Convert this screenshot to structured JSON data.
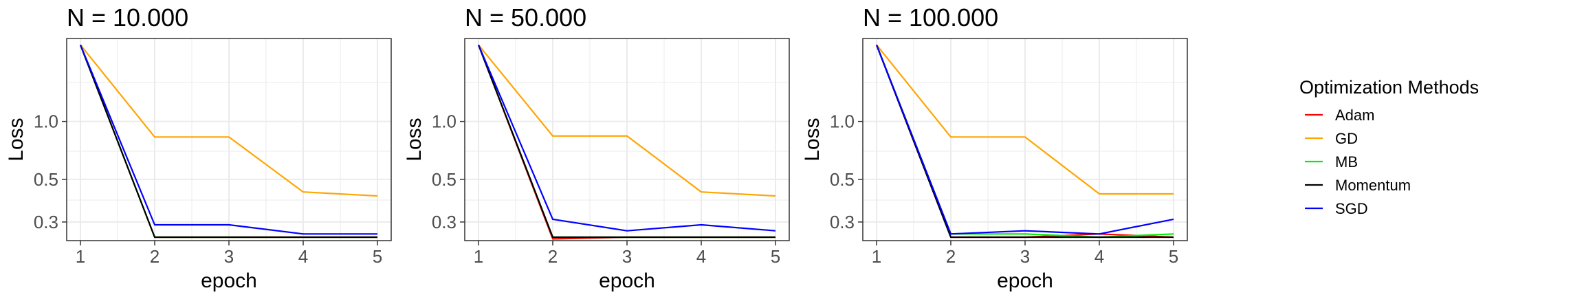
{
  "chart_data": [
    {
      "type": "line",
      "title": "N = 10.000",
      "xlabel": "epoch",
      "ylabel": "Loss",
      "x": [
        1,
        2,
        3,
        4,
        5
      ],
      "y_scale": "log",
      "yticks": [
        "0.3",
        "0.5",
        "1.0"
      ],
      "series": [
        {
          "name": "Adam",
          "values": [
            2.5,
            0.25,
            0.25,
            0.25,
            0.25
          ]
        },
        {
          "name": "GD",
          "values": [
            2.5,
            0.83,
            0.83,
            0.43,
            0.41
          ]
        },
        {
          "name": "MB",
          "values": [
            2.5,
            0.25,
            0.25,
            0.25,
            0.25
          ]
        },
        {
          "name": "Momentum",
          "values": [
            2.5,
            0.25,
            0.25,
            0.25,
            0.25
          ]
        },
        {
          "name": "SGD",
          "values": [
            2.5,
            0.29,
            0.29,
            0.26,
            0.26
          ]
        }
      ]
    },
    {
      "type": "line",
      "title": "N = 50.000",
      "xlabel": "epoch",
      "ylabel": "Loss",
      "x": [
        1,
        2,
        3,
        4,
        5
      ],
      "y_scale": "log",
      "yticks": [
        "0.3",
        "0.5",
        "1.0"
      ],
      "series": [
        {
          "name": "Adam",
          "values": [
            2.5,
            0.245,
            0.25,
            0.25,
            0.25
          ]
        },
        {
          "name": "GD",
          "values": [
            2.5,
            0.84,
            0.84,
            0.43,
            0.41
          ]
        },
        {
          "name": "MB",
          "values": [
            2.5,
            0.25,
            0.25,
            0.25,
            0.25
          ]
        },
        {
          "name": "Momentum",
          "values": [
            2.5,
            0.25,
            0.25,
            0.25,
            0.25
          ]
        },
        {
          "name": "SGD",
          "values": [
            2.5,
            0.31,
            0.27,
            0.29,
            0.27
          ]
        }
      ]
    },
    {
      "type": "line",
      "title": "N = 100.000",
      "xlabel": "epoch",
      "ylabel": "Loss",
      "x": [
        1,
        2,
        3,
        4,
        5
      ],
      "y_scale": "log",
      "yticks": [
        "0.3",
        "0.5",
        "1.0"
      ],
      "series": [
        {
          "name": "Adam",
          "values": [
            2.5,
            0.25,
            0.25,
            0.26,
            0.25
          ]
        },
        {
          "name": "GD",
          "values": [
            2.5,
            0.83,
            0.83,
            0.42,
            0.42
          ]
        },
        {
          "name": "MB",
          "values": [
            2.5,
            0.26,
            0.26,
            0.25,
            0.26
          ]
        },
        {
          "name": "Momentum",
          "values": [
            2.5,
            0.25,
            0.25,
            0.25,
            0.25
          ]
        },
        {
          "name": "SGD",
          "values": [
            2.5,
            0.26,
            0.27,
            0.26,
            0.31
          ]
        }
      ]
    }
  ],
  "legend": {
    "title": "Optimization Methods",
    "placement": "right",
    "items": [
      {
        "name": "Adam",
        "color": "#ff0000"
      },
      {
        "name": "GD",
        "color": "#ffa500"
      },
      {
        "name": "MB",
        "color": "#00ee00"
      },
      {
        "name": "Momentum",
        "color": "#000000"
      },
      {
        "name": "SGD",
        "color": "#0000ff"
      }
    ]
  },
  "colors": {
    "grid": "#ebebeb",
    "panel_border": "#333333",
    "tick_text": "#4d4d4d"
  }
}
